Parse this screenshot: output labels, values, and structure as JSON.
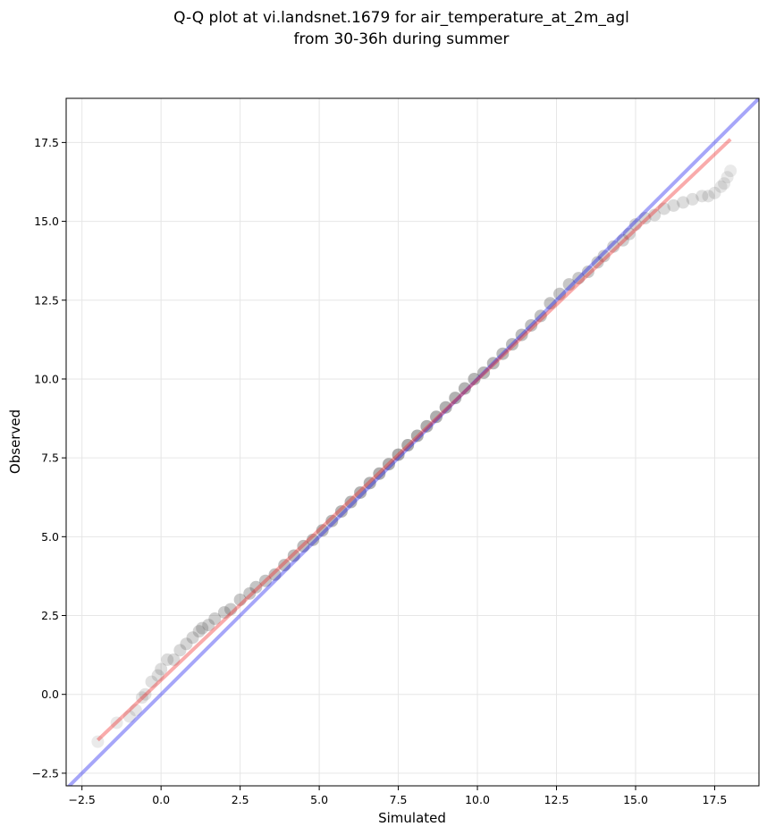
{
  "chart_data": {
    "type": "scatter",
    "title_line1": "Q-Q plot at vi.landsnet.1679 for air_temperature_at_2m_agl",
    "title_line2": "from 30-36h during summer",
    "xlabel": "Simulated",
    "ylabel": "Observed",
    "xlim": [
      -3.0,
      18.9
    ],
    "ylim": [
      -2.9,
      18.9
    ],
    "xticks": [
      -2.5,
      0.0,
      2.5,
      5.0,
      7.5,
      10.0,
      12.5,
      15.0,
      17.5
    ],
    "yticks": [
      -2.5,
      0.0,
      2.5,
      5.0,
      7.5,
      10.0,
      12.5,
      15.0,
      17.5
    ],
    "xtick_labels": [
      "−2.5",
      "0.0",
      "2.5",
      "5.0",
      "7.5",
      "10.0",
      "12.5",
      "15.0",
      "17.5"
    ],
    "ytick_labels": [
      "−2.5",
      "0.0",
      "2.5",
      "5.0",
      "7.5",
      "10.0",
      "12.5",
      "15.0",
      "17.5"
    ],
    "grid": true,
    "colors": {
      "points": "#555555",
      "identity_line": "#0000ee",
      "fit_line": "#ee2222"
    },
    "identity_line": {
      "x": [
        -3.0,
        18.9
      ],
      "y": [
        -3.0,
        18.9
      ]
    },
    "fit_line": {
      "x": [
        -2.0,
        18.0
      ],
      "y": [
        -1.45,
        17.6
      ]
    },
    "series": [
      {
        "x": [
          -2.0,
          -1.4,
          -1.0,
          -0.8,
          -0.6,
          -0.5,
          -0.3,
          -0.1,
          0.0,
          0.2,
          0.4,
          0.6,
          0.8,
          1.0,
          1.2,
          1.3,
          1.5,
          1.7,
          2.0,
          2.2,
          2.5,
          2.8,
          3.0,
          3.3,
          3.6,
          3.9,
          4.2,
          4.5,
          4.8,
          5.1,
          5.4,
          5.7,
          6.0,
          6.3,
          6.6,
          6.9,
          7.2,
          7.5,
          7.8,
          8.1,
          8.4,
          8.7,
          9.0,
          9.3,
          9.6,
          9.9,
          10.2,
          10.5,
          10.8,
          11.1,
          11.4,
          11.7,
          12.0,
          12.3,
          12.6,
          12.9,
          13.2,
          13.5,
          13.8,
          14.0,
          14.3,
          14.6,
          14.8,
          15.0,
          15.3,
          15.6,
          15.9,
          16.2,
          16.5,
          16.8,
          17.1,
          17.3,
          17.5,
          17.7,
          17.8,
          17.9,
          18.0
        ],
        "y": [
          -1.5,
          -0.9,
          -0.7,
          -0.5,
          -0.1,
          0.0,
          0.4,
          0.6,
          0.8,
          1.1,
          1.1,
          1.4,
          1.6,
          1.8,
          2.0,
          2.1,
          2.2,
          2.4,
          2.6,
          2.7,
          3.0,
          3.2,
          3.4,
          3.6,
          3.8,
          4.1,
          4.4,
          4.7,
          4.9,
          5.2,
          5.5,
          5.8,
          6.1,
          6.4,
          6.7,
          7.0,
          7.3,
          7.6,
          7.9,
          8.2,
          8.5,
          8.8,
          9.1,
          9.4,
          9.7,
          10.0,
          10.2,
          10.5,
          10.8,
          11.1,
          11.4,
          11.7,
          12.0,
          12.4,
          12.7,
          13.0,
          13.2,
          13.4,
          13.7,
          13.9,
          14.2,
          14.4,
          14.6,
          14.9,
          15.1,
          15.2,
          15.4,
          15.5,
          15.6,
          15.7,
          15.8,
          15.8,
          15.9,
          16.1,
          16.2,
          16.4,
          16.6
        ]
      }
    ]
  }
}
